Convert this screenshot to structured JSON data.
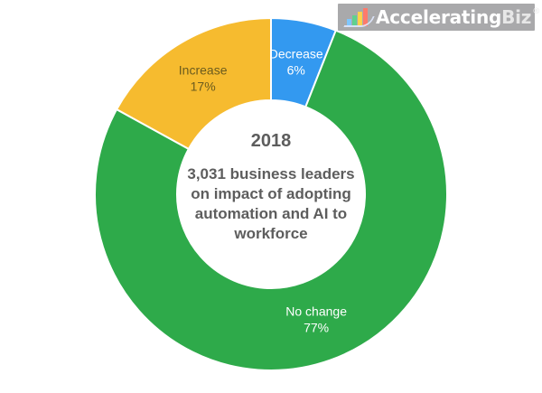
{
  "chart_data": {
    "type": "pie",
    "variant": "donut",
    "center_text": {
      "title": "2018",
      "description": "3,031 business leaders on impact of adopting automation and AI to workforce"
    },
    "slices": [
      {
        "label": "Decrease",
        "value": 6,
        "display": "6%",
        "color": "#3399f0",
        "label_color": "#ffffff"
      },
      {
        "label": "No change",
        "value": 77,
        "display": "77%",
        "color": "#2eaa4a",
        "label_color": "#ffffff"
      },
      {
        "label": "Increase",
        "value": 17,
        "display": "17%",
        "color": "#f6bb2f",
        "label_color": "#6b5b1e"
      }
    ],
    "start_angle_deg": 0,
    "direction": "clockwise"
  },
  "branding": {
    "logo_prefix": "Accelerating",
    "logo_suffix": "Biz",
    "logo_mark": "®"
  }
}
